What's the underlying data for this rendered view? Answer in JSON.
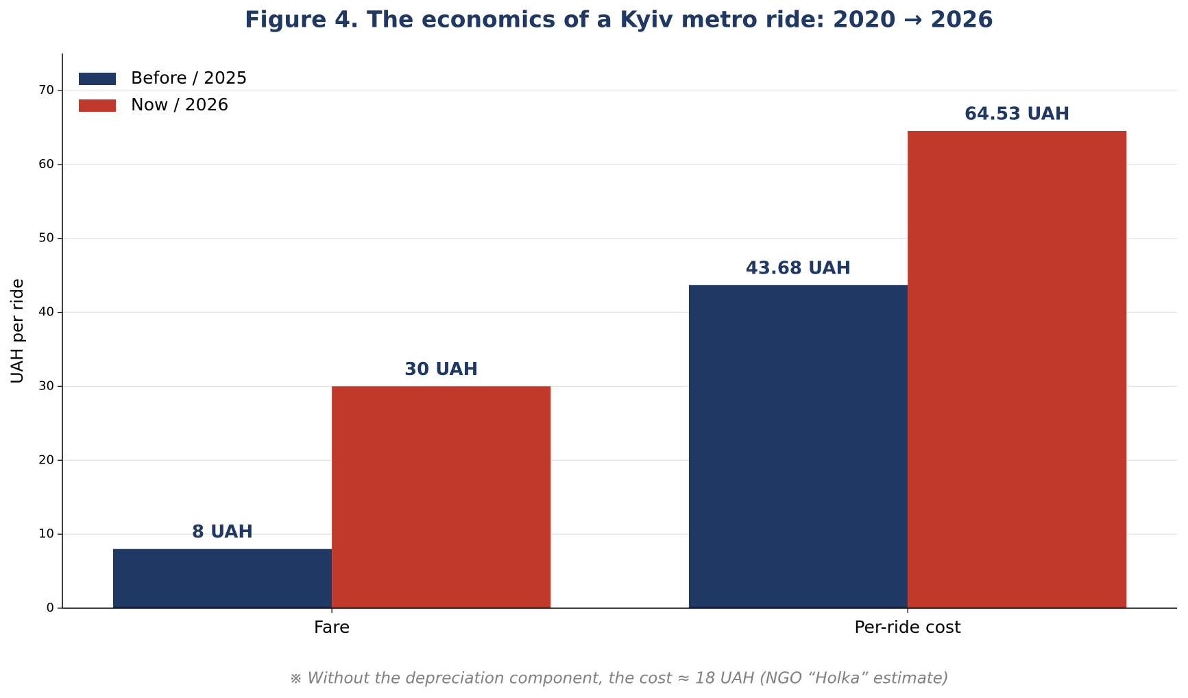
{
  "chart_data": {
    "type": "bar",
    "title": "Figure 4. The economics of a Kyiv metro ride: 2020 → 2026",
    "y_label": "UAH per ride",
    "annotation": "※ Without the depreciation component, the cost ≈ 18 UAH (NGO “Holka” estimate)",
    "categories": [
      "Fare",
      "Per-ride cost"
    ],
    "series": [
      {
        "name": "Before / 2025",
        "color": "#203864",
        "values": [
          8,
          43.68
        ],
        "value_labels": [
          "8 UAH",
          "43.68 UAH"
        ]
      },
      {
        "name": "Now / 2026",
        "color": "#c0392b",
        "values": [
          30,
          64.53
        ],
        "value_labels": [
          "30 UAH",
          "64.53 UAH"
        ]
      }
    ],
    "ylim": [
      0,
      75
    ],
    "yticks": [
      0,
      10,
      20,
      30,
      40,
      50,
      60,
      70
    ],
    "grid": true,
    "legend": "upper left"
  }
}
